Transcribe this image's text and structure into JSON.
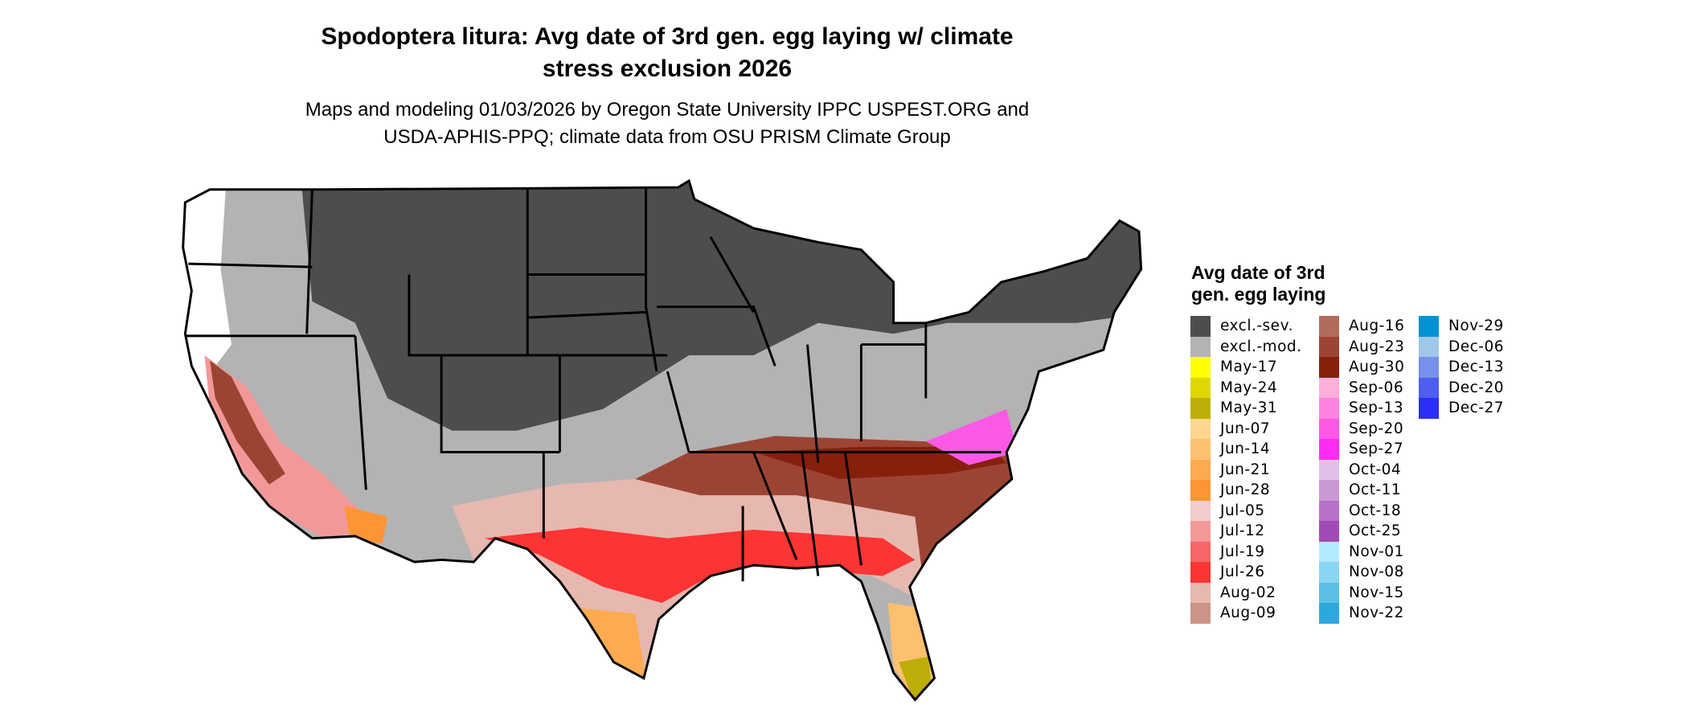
{
  "title": {
    "line1": "Spodoptera litura: Avg date of 3rd gen. egg laying w/ climate",
    "line2": "stress exclusion 2026"
  },
  "subtitle": {
    "line1": "Maps and modeling 01/03/2026 by Oregon State University IPPC USPEST.ORG and",
    "line2": "USDA-APHIS-PPQ; climate data from OSU PRISM Climate Group"
  },
  "map": {
    "region": "Contiguous United States",
    "boundaries": "state borders in black",
    "dominant_classes": [
      "excl.-sev.",
      "excl.-mod.",
      "Jul-26",
      "Aug-02",
      "Aug-23",
      "Jun-14"
    ]
  },
  "legend": {
    "title_line1": "Avg date of 3rd",
    "title_line2": "gen. egg laying",
    "items": [
      {
        "label": "excl.-sev.",
        "color": "#4d4d4d"
      },
      {
        "label": "excl.-mod.",
        "color": "#b3b3b3"
      },
      {
        "label": "May-17",
        "color": "#ffff00"
      },
      {
        "label": "May-24",
        "color": "#dfd800"
      },
      {
        "label": "May-31",
        "color": "#bdae08"
      },
      {
        "label": "Jun-07",
        "color": "#fed690"
      },
      {
        "label": "Jun-14",
        "color": "#fdc070"
      },
      {
        "label": "Jun-21",
        "color": "#fcab50"
      },
      {
        "label": "Jun-28",
        "color": "#fb9535"
      },
      {
        "label": "Jul-05",
        "color": "#f5cccc"
      },
      {
        "label": "Jul-12",
        "color": "#f39898"
      },
      {
        "label": "Jul-19",
        "color": "#f66666"
      },
      {
        "label": "Jul-26",
        "color": "#fd3434"
      },
      {
        "label": "Aug-02",
        "color": "#e6b8b0"
      },
      {
        "label": "Aug-09",
        "color": "#cc9488"
      },
      {
        "label": "Aug-16",
        "color": "#b36b5c"
      },
      {
        "label": "Aug-23",
        "color": "#9c4433"
      },
      {
        "label": "Aug-30",
        "color": "#86200d"
      },
      {
        "label": "Sep-06",
        "color": "#fdb0da"
      },
      {
        "label": "Sep-13",
        "color": "#fe82de"
      },
      {
        "label": "Sep-20",
        "color": "#fe58e6"
      },
      {
        "label": "Sep-27",
        "color": "#fe2cf0"
      },
      {
        "label": "Oct-04",
        "color": "#e0c0e6"
      },
      {
        "label": "Oct-11",
        "color": "#ca98d5"
      },
      {
        "label": "Oct-18",
        "color": "#b672c6"
      },
      {
        "label": "Oct-25",
        "color": "#a24bb8"
      },
      {
        "label": "Nov-01",
        "color": "#b3ebfe"
      },
      {
        "label": "Nov-08",
        "color": "#88d6f2"
      },
      {
        "label": "Nov-15",
        "color": "#5bbfe6"
      },
      {
        "label": "Nov-22",
        "color": "#2ca8dc"
      },
      {
        "label": "Nov-29",
        "color": "#0092d2"
      },
      {
        "label": "Dec-06",
        "color": "#a0c6e8"
      },
      {
        "label": "Dec-13",
        "color": "#7790ec"
      },
      {
        "label": "Dec-20",
        "color": "#4e5ef2"
      },
      {
        "label": "Dec-27",
        "color": "#2a2ef8"
      }
    ]
  }
}
